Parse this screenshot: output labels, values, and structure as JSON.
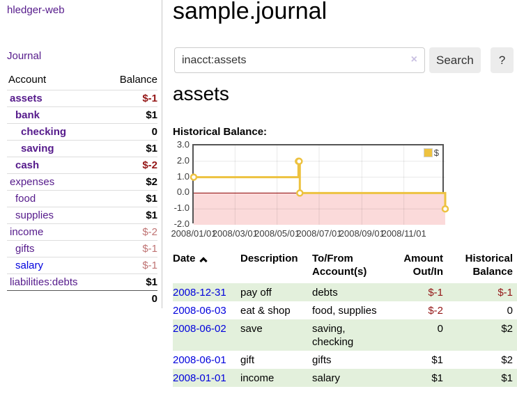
{
  "app_title": "hledger-web",
  "sidebar": {
    "journal_link": "Journal",
    "accounts": {
      "col_account": "Account",
      "col_balance": "Balance",
      "rows": [
        {
          "name": "assets",
          "indent": 0,
          "emph": true,
          "balance": "$-1",
          "neg": "strong"
        },
        {
          "name": "bank",
          "indent": 1,
          "emph": true,
          "balance": "$1",
          "neg": "none"
        },
        {
          "name": "checking",
          "indent": 2,
          "emph": true,
          "balance": "0",
          "neg": "none"
        },
        {
          "name": "saving",
          "indent": 2,
          "emph": true,
          "balance": "$1",
          "neg": "none"
        },
        {
          "name": "cash",
          "indent": 1,
          "emph": true,
          "balance": "$-2",
          "neg": "strong"
        },
        {
          "name": "expenses",
          "indent": 0,
          "emph": false,
          "balance": "$2",
          "neg": "none"
        },
        {
          "name": "food",
          "indent": 1,
          "emph": false,
          "balance": "$1",
          "neg": "none"
        },
        {
          "name": "supplies",
          "indent": 1,
          "emph": false,
          "balance": "$1",
          "neg": "none"
        },
        {
          "name": "income",
          "indent": 0,
          "emph": false,
          "balance": "$-2",
          "neg": "soft"
        },
        {
          "name": "gifts",
          "indent": 1,
          "emph": false,
          "balance": "$-1",
          "neg": "soft"
        },
        {
          "name": "salary",
          "indent": 1,
          "emph": false,
          "balance": "$-1",
          "neg": "soft",
          "link": "blue"
        },
        {
          "name": "liabilities:debts",
          "indent": 0,
          "emph": false,
          "balance": "$1",
          "neg": "none"
        }
      ],
      "total": "0"
    }
  },
  "main": {
    "title": "sample.journal",
    "search": {
      "value": "inacct:assets",
      "clear_icon": "×",
      "search_button": "Search",
      "help_button": "?"
    },
    "account_heading": "assets",
    "chart_heading": "Historical Balance:"
  },
  "chart_data": {
    "type": "line",
    "step": true,
    "title": "Historical Balance",
    "series": [
      {
        "name": "$",
        "color": "#edc240",
        "points": [
          [
            "2008-01-01",
            1
          ],
          [
            "2008-06-01",
            2
          ],
          [
            "2008-06-02",
            2
          ],
          [
            "2008-06-03",
            0
          ],
          [
            "2008-12-31",
            -1
          ]
        ]
      }
    ],
    "legend": [
      {
        "label": "$",
        "color": "#edc240"
      }
    ],
    "legend_position": "top-right",
    "xlim": [
      "2008-01-01",
      "2008-12-31"
    ],
    "ylim": [
      -2,
      3
    ],
    "y_ticks": [
      "3.0",
      "2.0",
      "1.0",
      "0.0",
      "-1.0",
      "-2.0"
    ],
    "x_ticks": [
      "2008/01/01",
      "2008/03/01",
      "2008/05/01",
      "2008/07/01",
      "2008/09/01",
      "2008/11/01"
    ],
    "grid": true,
    "negative_fill": "#fbdada",
    "zero_line_color": "#8b0000"
  },
  "register": {
    "columns": [
      "Date",
      "Description",
      "To/From Account(s)",
      "Amount Out/In",
      "Historical Balance"
    ],
    "sort_column": "Date",
    "sort_direction": "ascending",
    "rows": [
      {
        "date": "2008-12-31",
        "description": "pay off",
        "accounts": "debts",
        "amount": "$-1",
        "balance": "$-1"
      },
      {
        "date": "2008-06-03",
        "description": "eat & shop",
        "accounts": "food, supplies",
        "amount": "$-2",
        "balance": "0"
      },
      {
        "date": "2008-06-02",
        "description": "save",
        "accounts": "saving, checking",
        "amount": "0",
        "balance": "$2"
      },
      {
        "date": "2008-06-01",
        "description": "gift",
        "accounts": "gifts",
        "amount": "$1",
        "balance": "$2"
      },
      {
        "date": "2008-01-01",
        "description": "income",
        "accounts": "salary",
        "amount": "$1",
        "balance": "$1"
      }
    ]
  },
  "colors": {
    "link_purple": "#551a8b",
    "link_blue": "#0000dd",
    "negative_strong": "#941616",
    "negative_soft": "#bf7373",
    "row_stripe_green": "#e3f0dc",
    "chart_line_yellow": "#edc240",
    "chart_negative_region": "#fbdada",
    "chart_zero_line": "#8b0000"
  }
}
